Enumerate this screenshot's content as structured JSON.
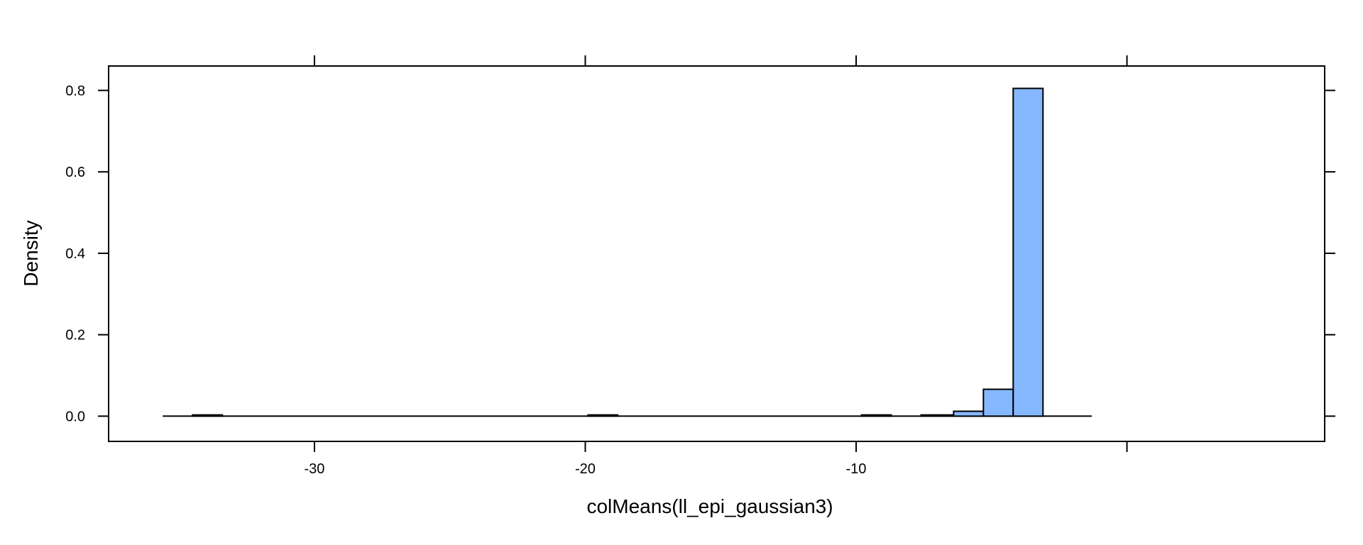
{
  "chart_data": {
    "type": "bar",
    "title": "",
    "xlabel": "colMeans(ll_epi_gaussian3)",
    "ylabel": "Density",
    "xlim": [
      -37.6,
      7.3
    ],
    "ylim": [
      -0.062,
      0.86
    ],
    "x_ticks": [
      {
        "value": -30,
        "label": "-30"
      },
      {
        "value": -20,
        "label": "-20"
      },
      {
        "value": -10,
        "label": "-10"
      },
      {
        "value": 0,
        "label": ""
      }
    ],
    "y_ticks": [
      {
        "value": 0.0,
        "label": "0.0"
      },
      {
        "value": 0.2,
        "label": "0.2"
      },
      {
        "value": 0.4,
        "label": "0.4"
      },
      {
        "value": 0.6,
        "label": "0.6"
      },
      {
        "value": 0.8,
        "label": "0.8"
      }
    ],
    "baseline_range": [
      -35.6,
      -1.3
    ],
    "bin_edges": [
      -35.6,
      -34.5,
      -33.4,
      -32.2,
      -31.1,
      -30.0,
      -28.9,
      -27.8,
      -26.6,
      -25.5,
      -24.4,
      -23.3,
      -22.1,
      -21.0,
      -19.9,
      -18.8,
      -17.7,
      -16.5,
      -15.4,
      -14.3,
      -13.2,
      -12.0,
      -10.9,
      -9.8,
      -8.7,
      -7.6,
      -6.4,
      -5.3,
      -4.2,
      -3.1,
      -2.0
    ],
    "densities": [
      0.0,
      0.003,
      0.0,
      0.0,
      0.0,
      0.0,
      0.0,
      0.0,
      0.0,
      0.0,
      0.0,
      0.0,
      0.0,
      0.0,
      0.003,
      0.0,
      0.0,
      0.0,
      0.0,
      0.0,
      0.0,
      0.0,
      0.0,
      0.003,
      0.0,
      0.003,
      0.012,
      0.066,
      0.805,
      0.0
    ],
    "bar_color": "#86B8FF",
    "grid": false,
    "legend": false
  }
}
